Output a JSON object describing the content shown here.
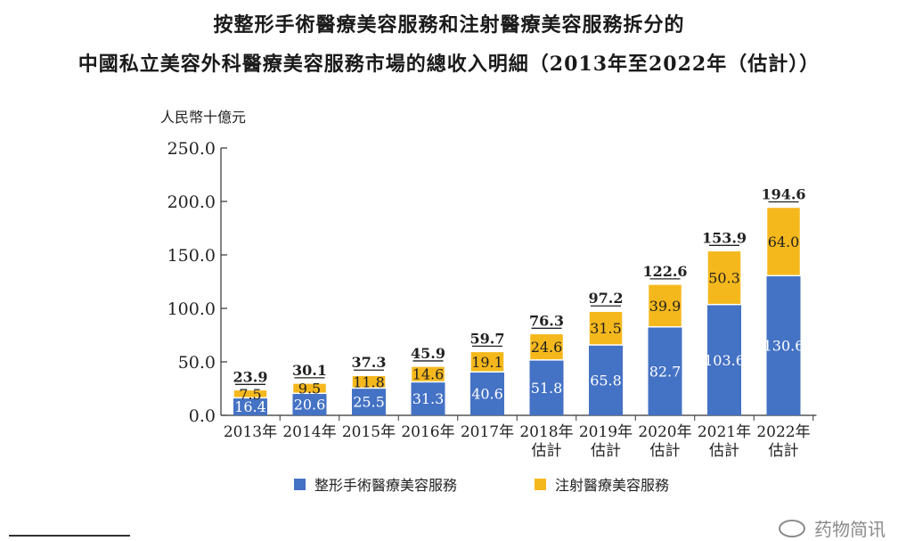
{
  "title": [
    "按整形手術醫療美容服務和注射醫療美容服務拆分的",
    "中國私立美容外科醫療美容服務市場的總收入明細（2013年至2022年（估計））"
  ],
  "unit_label": "人民幣十億元",
  "watermark": "药物简讯",
  "colors": {
    "surgical": "#4472C4",
    "injection": "#F5B81C"
  },
  "chart_data": {
    "type": "bar",
    "stacked": true,
    "categories": [
      [
        "2013年"
      ],
      [
        "2014年"
      ],
      [
        "2015年"
      ],
      [
        "2016年"
      ],
      [
        "2017年"
      ],
      [
        "2018年",
        "估計"
      ],
      [
        "2019年",
        "估計"
      ],
      [
        "2020年",
        "估計"
      ],
      [
        "2021年",
        "估計"
      ],
      [
        "2022年",
        "估計"
      ]
    ],
    "series": [
      {
        "name": "整形手術醫療美容服務",
        "values": [
          16.4,
          20.6,
          25.5,
          31.3,
          40.6,
          51.8,
          65.8,
          82.7,
          103.6,
          130.6
        ]
      },
      {
        "name": "注射醫療美容服務",
        "values": [
          7.5,
          9.5,
          11.8,
          14.6,
          19.1,
          24.6,
          31.5,
          39.9,
          50.3,
          64.0
        ]
      }
    ],
    "totals": [
      23.9,
      30.1,
      37.3,
      45.9,
      59.7,
      76.3,
      97.2,
      122.6,
      153.9,
      194.6
    ],
    "yticks": [
      "0.0",
      "50.0",
      "100.0",
      "150.0",
      "200.0",
      "250.0"
    ],
    "ylim": [
      0,
      250
    ],
    "legend": "bottom"
  }
}
